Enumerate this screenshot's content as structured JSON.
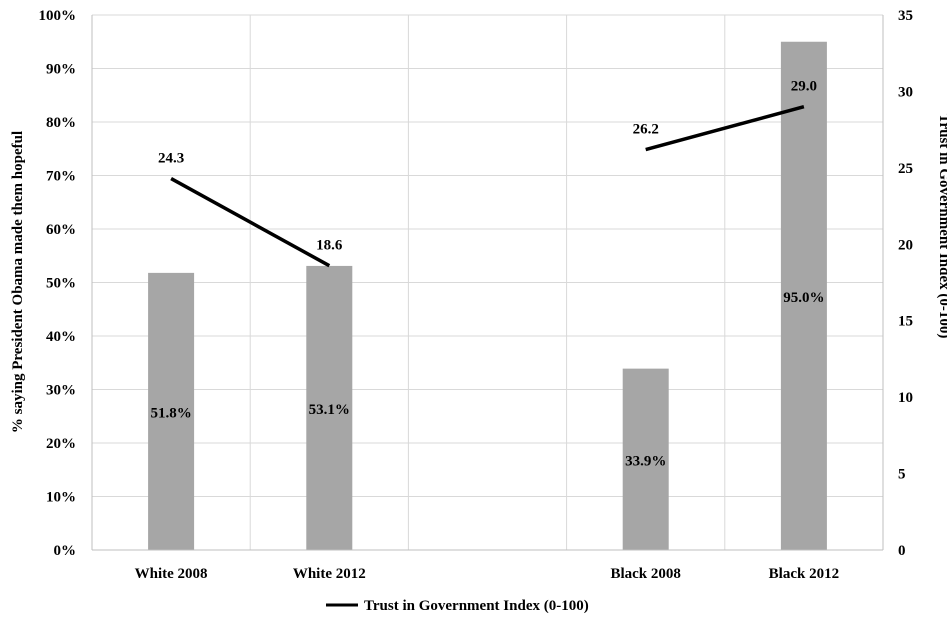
{
  "chart_data": {
    "type": "bar",
    "categories": [
      "White 2008",
      "White 2012",
      "",
      "Black 2008",
      "Black 2012"
    ],
    "bars": {
      "values": [
        51.8,
        53.1,
        null,
        33.9,
        95.0
      ],
      "labels": [
        "51.8%",
        "53.1%",
        "",
        "33.9%",
        "95.0%"
      ],
      "color": "#a6a6a6"
    },
    "line": {
      "name": "Trust in Government Index (0-100)",
      "segments": [
        {
          "values": [
            24.3,
            18.6
          ],
          "labels": [
            "24.3",
            "18.6"
          ],
          "categories": [
            0,
            1
          ]
        },
        {
          "values": [
            26.2,
            29.0
          ],
          "labels": [
            "26.2",
            "29.0"
          ],
          "categories": [
            3,
            4
          ]
        }
      ],
      "color": "#000000"
    },
    "ylabel_left": "% saying President Obama made them hopeful",
    "ylabel_right": "Trust in Government Index (0-100)",
    "ylim_left": [
      0,
      100
    ],
    "ylim_right": [
      0,
      35
    ],
    "yticks_left": [
      "0%",
      "10%",
      "20%",
      "30%",
      "40%",
      "50%",
      "60%",
      "70%",
      "80%",
      "90%",
      "100%"
    ],
    "yticks_right": [
      "0",
      "5",
      "10",
      "15",
      "20",
      "25",
      "30",
      "35"
    ],
    "grid": true,
    "legend_position": "bottom"
  }
}
